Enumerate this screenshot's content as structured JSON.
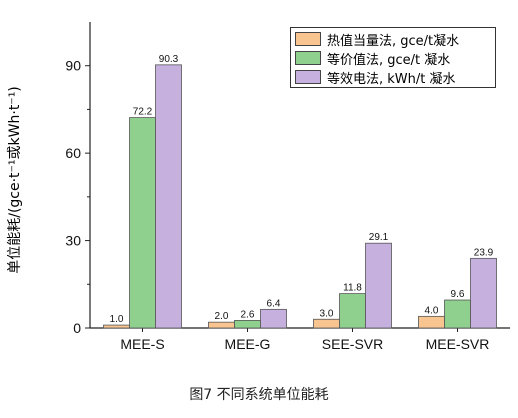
{
  "caption": "图7 不同系统单位能耗",
  "chart_data": {
    "type": "bar",
    "title": "",
    "xlabel": "",
    "ylabel": "单位能耗/(gce·t⁻¹或kWh·t⁻¹)",
    "ylim": [
      0,
      105
    ],
    "yticks": [
      0,
      30,
      60,
      90
    ],
    "grid": false,
    "legend_position": "top-right",
    "categories": [
      "MEE-S",
      "MEE-G",
      "SEE-SVR",
      "MEE-SVR"
    ],
    "series": [
      {
        "name": "热值当量法, gce/t凝水",
        "color": "#f8c48f",
        "values": [
          1.0,
          2.0,
          3.0,
          4.0
        ],
        "labels": [
          "1.0",
          "2.0",
          "3.0",
          "4.0"
        ]
      },
      {
        "name": "等价值法, gce/t 凝水",
        "color": "#8fd08f",
        "values": [
          72.2,
          2.6,
          11.8,
          9.6
        ],
        "labels": [
          "72.2",
          "2.6",
          "11.8",
          "9.6"
        ]
      },
      {
        "name": "等效电法, kWh/t 凝水",
        "color": "#c5b0de",
        "values": [
          90.3,
          6.4,
          29.1,
          23.9
        ],
        "labels": [
          "90.3",
          "6.4",
          "29.1",
          "23.9"
        ]
      }
    ]
  }
}
